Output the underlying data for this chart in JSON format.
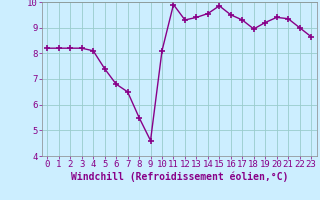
{
  "x": [
    0,
    1,
    2,
    3,
    4,
    5,
    6,
    7,
    8,
    9,
    10,
    11,
    12,
    13,
    14,
    15,
    16,
    17,
    18,
    19,
    20,
    21,
    22,
    23
  ],
  "y": [
    8.2,
    8.2,
    8.2,
    8.2,
    8.1,
    7.4,
    6.8,
    6.5,
    5.5,
    4.6,
    8.1,
    9.9,
    9.3,
    9.4,
    9.55,
    9.85,
    9.5,
    9.3,
    8.95,
    9.2,
    9.4,
    9.35,
    9.0,
    8.65
  ],
  "line_color": "#880088",
  "marker": "+",
  "marker_color": "#880088",
  "bg_color": "#cceeff",
  "grid_color": "#99cccc",
  "xlabel": "Windchill (Refroidissement éolien,°C)",
  "ylim": [
    4,
    10
  ],
  "xlim_min": -0.5,
  "xlim_max": 23.5,
  "yticks": [
    4,
    5,
    6,
    7,
    8,
    9,
    10
  ],
  "xticks": [
    0,
    1,
    2,
    3,
    4,
    5,
    6,
    7,
    8,
    9,
    10,
    11,
    12,
    13,
    14,
    15,
    16,
    17,
    18,
    19,
    20,
    21,
    22,
    23
  ],
  "tick_fontsize": 6.5,
  "xlabel_fontsize": 7,
  "line_width": 1.0,
  "marker_size": 4
}
